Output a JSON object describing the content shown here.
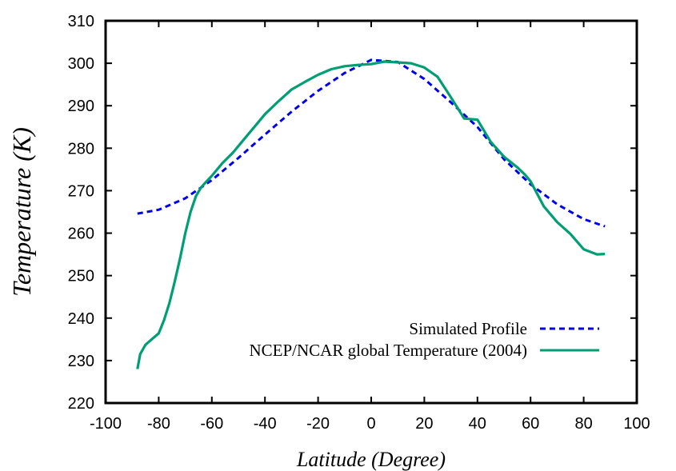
{
  "chart_data": {
    "type": "line",
    "title": "",
    "xlabel": "Latitude (Degree)",
    "ylabel": "Temperature (K)",
    "xlim": [
      -100,
      100
    ],
    "ylim": [
      220,
      310
    ],
    "xticks": [
      -100,
      -80,
      -60,
      -40,
      -20,
      0,
      20,
      40,
      60,
      80,
      100
    ],
    "yticks": [
      220,
      230,
      240,
      250,
      260,
      270,
      280,
      290,
      300,
      310
    ],
    "grid": false,
    "legend_position": "bottom-right",
    "series": [
      {
        "name": "Simulated Profile",
        "color": "#0000ee",
        "style": "dashed",
        "x": [
          -88,
          -80,
          -70,
          -60,
          -50,
          -40,
          -30,
          -20,
          -10,
          0,
          10,
          20,
          30,
          40,
          50,
          60,
          70,
          80,
          88
        ],
        "y": [
          264.6,
          265.5,
          268.2,
          272.5,
          277.7,
          283.2,
          288.6,
          293.5,
          297.7,
          300.8,
          300.3,
          296.3,
          290.8,
          285.0,
          277.4,
          271.5,
          266.8,
          263.3,
          261.6
        ]
      },
      {
        "name": "NCEP/NCAR global Temperature (2004)",
        "color": "#009e73",
        "style": "solid",
        "x": [
          -88,
          -87,
          -85,
          -83,
          -80,
          -78,
          -76,
          -74,
          -72,
          -70,
          -68,
          -66,
          -64,
          -62,
          -60,
          -56,
          -52,
          -48,
          -44,
          -40,
          -35,
          -30,
          -25,
          -20,
          -15,
          -10,
          -5,
          0,
          5,
          10,
          15,
          20,
          25,
          30,
          35,
          40,
          45,
          50,
          55,
          58,
          60,
          65,
          70,
          75,
          80,
          85,
          88
        ],
        "y": [
          228,
          231.5,
          233.7,
          234.8,
          236.4,
          239.5,
          243.5,
          248.5,
          254,
          260,
          265,
          268.7,
          270.8,
          272.2,
          273.5,
          276.5,
          279,
          282,
          285,
          288,
          291,
          293.8,
          295.6,
          297.3,
          298.6,
          299.3,
          299.6,
          299.8,
          300.4,
          300.2,
          300,
          299,
          296.8,
          292,
          287,
          286.7,
          281.5,
          278,
          275.5,
          273.7,
          272.2,
          266.3,
          262.6,
          259.8,
          256.2,
          255,
          255.1
        ]
      }
    ]
  }
}
